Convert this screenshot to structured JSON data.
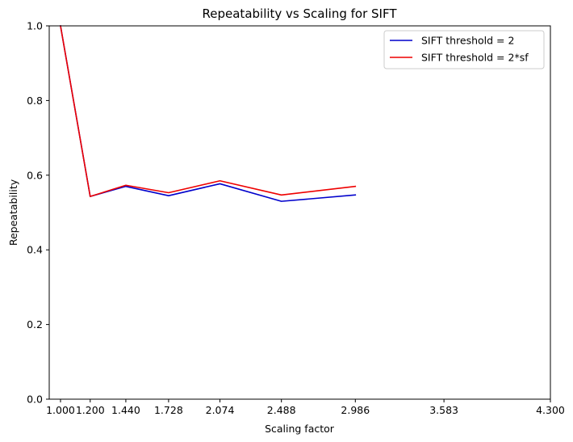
{
  "chart_data": {
    "type": "line",
    "title": "Repeatability vs Scaling for SIFT",
    "xlabel": "Scaling factor",
    "ylabel": "Repeatability",
    "xlim": [
      0.924,
      4.3
    ],
    "ylim": [
      0.0,
      1.0
    ],
    "x_ticks": [
      1.0,
      1.2,
      1.44,
      1.728,
      2.074,
      2.488,
      2.986,
      3.583,
      4.3
    ],
    "x_tick_labels": [
      "1.000",
      "1.200",
      "1.440",
      "1.728",
      "2.074",
      "2.488",
      "2.986",
      "3.583",
      "4.300"
    ],
    "y_ticks": [
      0.0,
      0.2,
      0.4,
      0.6,
      0.8,
      1.0
    ],
    "y_tick_labels": [
      "0.0",
      "0.2",
      "0.4",
      "0.6",
      "0.8",
      "1.0"
    ],
    "grid": false,
    "legend_position": "top-right",
    "x": [
      1.0,
      1.2,
      1.44,
      1.728,
      2.074,
      2.488,
      2.986
    ],
    "series": [
      {
        "name": "SIFT threshold = 2",
        "color": "#0000cc",
        "values": [
          1.0,
          0.543,
          0.57,
          0.545,
          0.577,
          0.53,
          0.547
        ]
      },
      {
        "name": "SIFT threshold = 2*sf",
        "color": "#ee0000",
        "values": [
          1.0,
          0.543,
          0.573,
          0.553,
          0.585,
          0.547,
          0.57
        ]
      }
    ]
  }
}
